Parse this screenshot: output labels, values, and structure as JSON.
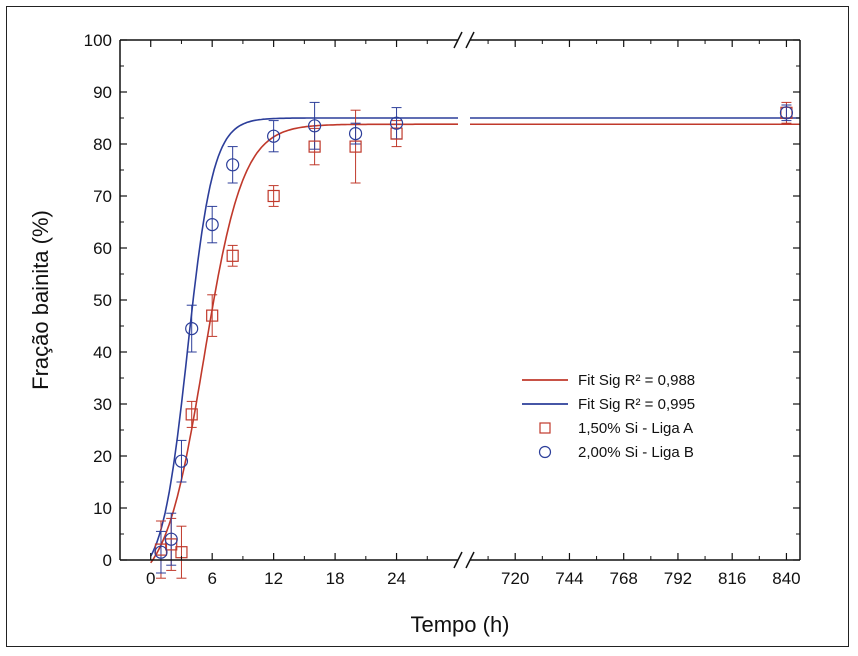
{
  "chart_data": {
    "type": "scatter",
    "xlabel": "Tempo (h)",
    "ylabel": "Fração bainita (%)",
    "ylim": [
      0,
      100
    ],
    "y_ticks": [
      0,
      10,
      20,
      30,
      40,
      50,
      60,
      70,
      80,
      90,
      100
    ],
    "x_segments": [
      {
        "range": [
          -3,
          30
        ],
        "ticks": [
          0,
          6,
          12,
          18,
          24
        ]
      },
      {
        "range": [
          700,
          846
        ],
        "ticks": [
          720,
          744,
          768,
          792,
          816,
          840
        ]
      }
    ],
    "axis_break": "x",
    "grid": false,
    "legend_position": "lower-right",
    "series": [
      {
        "name": "Fit Sig R² = 0,988",
        "kind": "line",
        "color": "#c0392b",
        "model": {
          "type": "sigmoid",
          "upper": 83.8,
          "lower": -6,
          "x0": 5.2,
          "slope": 1.9
        }
      },
      {
        "name": "Fit Sig R² = 0,995",
        "kind": "line",
        "color": "#2c3e9a",
        "model": {
          "type": "sigmoid",
          "upper": 85,
          "lower": -4,
          "x0": 3.6,
          "slope": 1.25
        }
      },
      {
        "name": "1,50% Si - Liga A",
        "kind": "points",
        "marker": "square",
        "color": "#c0392b",
        "points": [
          {
            "x": 1,
            "y": 2,
            "err": 5.5
          },
          {
            "x": 2,
            "y": 3,
            "err": 5
          },
          {
            "x": 3,
            "y": 1.5,
            "err": 5
          },
          {
            "x": 4,
            "y": 28,
            "err": 2.5
          },
          {
            "x": 6,
            "y": 47,
            "err": 4
          },
          {
            "x": 8,
            "y": 58.5,
            "err": 2
          },
          {
            "x": 12,
            "y": 70,
            "err": 2
          },
          {
            "x": 16,
            "y": 79.5,
            "err": 3.5
          },
          {
            "x": 20,
            "y": 79.5,
            "err": 7
          },
          {
            "x": 24,
            "y": 82,
            "err": 2.5
          },
          {
            "x": 840,
            "y": 86,
            "err": 2
          }
        ]
      },
      {
        "name": "2,00% Si - Liga B",
        "kind": "points",
        "marker": "circle",
        "color": "#2c3e9a",
        "points": [
          {
            "x": 1,
            "y": 1.5,
            "err": 4
          },
          {
            "x": 2,
            "y": 4,
            "err": 5
          },
          {
            "x": 3,
            "y": 19,
            "err": 4
          },
          {
            "x": 4,
            "y": 44.5,
            "err": 4.5
          },
          {
            "x": 6,
            "y": 64.5,
            "err": 3.5
          },
          {
            "x": 8,
            "y": 76,
            "err": 3.5
          },
          {
            "x": 12,
            "y": 81.5,
            "err": 3
          },
          {
            "x": 16,
            "y": 83.5,
            "err": 4.5
          },
          {
            "x": 20,
            "y": 82,
            "err": 2
          },
          {
            "x": 24,
            "y": 84,
            "err": 3
          },
          {
            "x": 840,
            "y": 86,
            "err": 1.5
          }
        ]
      }
    ]
  }
}
